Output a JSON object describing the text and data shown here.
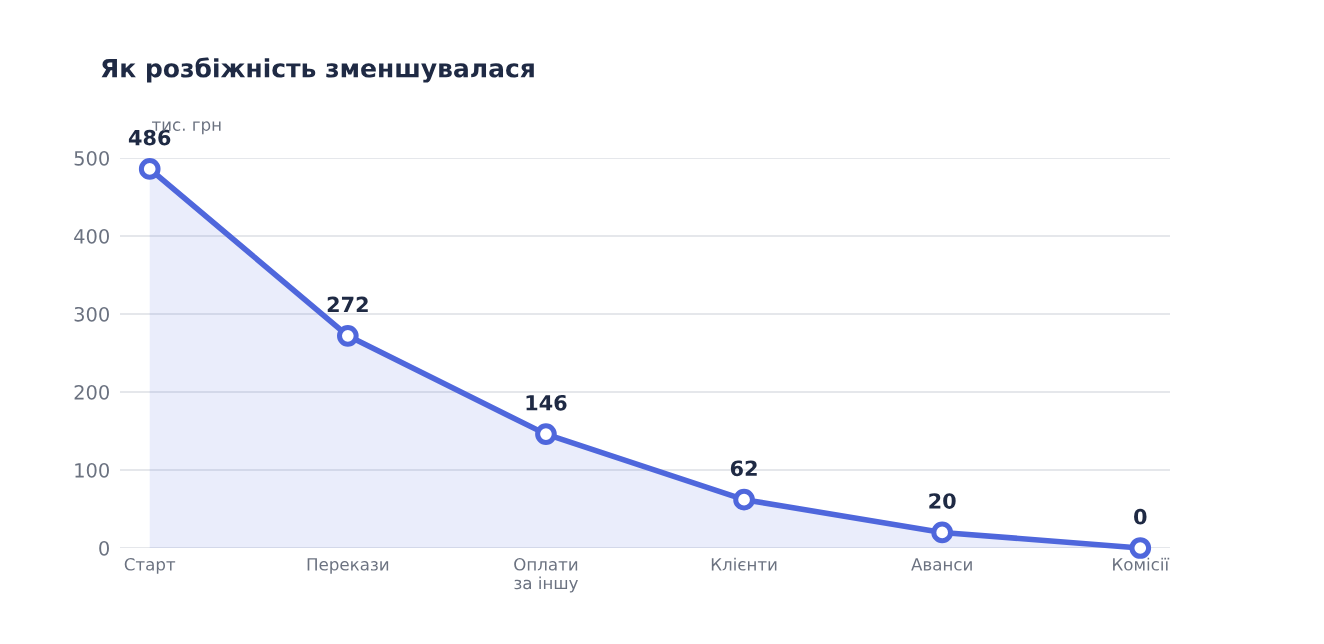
{
  "chart_data": {
    "type": "area",
    "title": "Як розбіжність зменшувалася",
    "ylabel": "тис. грн",
    "categories": [
      "Старт",
      "Перекази",
      "Оплати\nза іншу",
      "Клієнти",
      "Аванси",
      "Комісії"
    ],
    "series": [
      {
        "color": "#4f67dc",
        "values": [
          486,
          272,
          146,
          62,
          20,
          0
        ]
      }
    ],
    "ylim": [
      0,
      500
    ],
    "yticks": [
      0,
      100,
      200,
      300,
      400,
      500
    ],
    "grid": "y",
    "marker": "circle",
    "line_style": "solid",
    "data_labels": true,
    "legend": false
  }
}
